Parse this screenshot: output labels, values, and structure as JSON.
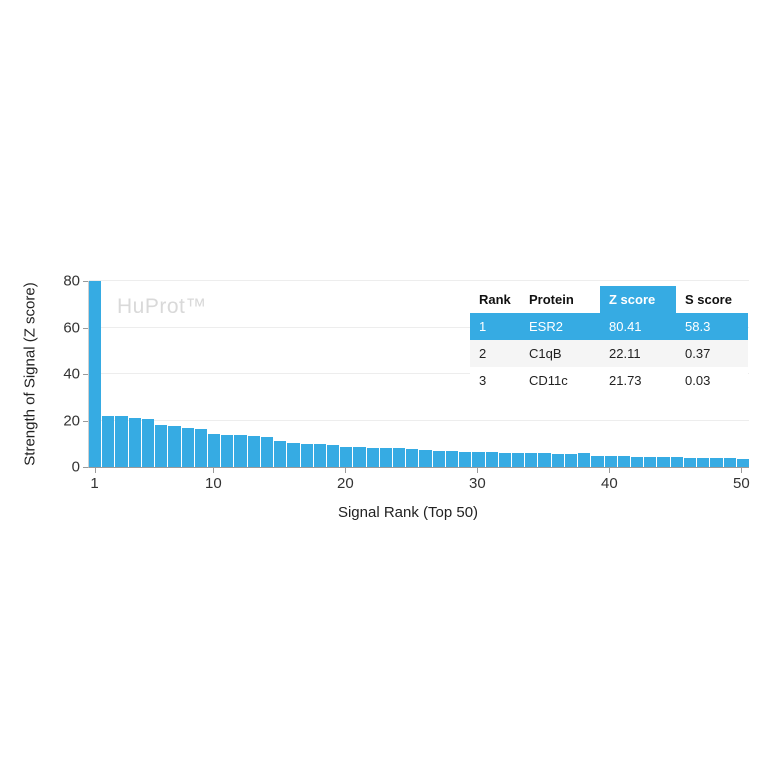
{
  "watermark": "HuProt™",
  "chart_data": {
    "type": "bar",
    "title": "",
    "xlabel": "Signal Rank (Top 50)",
    "ylabel": "Strength of Signal (Z score)",
    "ylim": [
      0,
      80
    ],
    "yticks": [
      0,
      20,
      40,
      60,
      80
    ],
    "xticks": [
      1,
      10,
      20,
      30,
      40,
      50
    ],
    "grid": "horizontal",
    "legend": "none",
    "bar_color": "#36ABE3",
    "x": [
      1,
      2,
      3,
      4,
      5,
      6,
      7,
      8,
      9,
      10,
      11,
      12,
      13,
      14,
      15,
      16,
      17,
      18,
      19,
      20,
      21,
      22,
      23,
      24,
      25,
      26,
      27,
      28,
      29,
      30,
      31,
      32,
      33,
      34,
      35,
      36,
      37,
      38,
      39,
      40,
      41,
      42,
      43,
      44,
      45,
      46,
      47,
      48,
      49,
      50
    ],
    "values": [
      80.41,
      22.11,
      21.73,
      21.2,
      20.6,
      18.1,
      17.6,
      16.7,
      16.2,
      14.2,
      13.8,
      13.6,
      13.3,
      13.1,
      11.2,
      10.3,
      9.9,
      9.7,
      9.4,
      8.7,
      8.5,
      8.3,
      8.1,
      8.0,
      7.8,
      7.3,
      7.0,
      6.8,
      6.5,
      6.4,
      6.3,
      6.1,
      6.0,
      6.0,
      5.9,
      5.7,
      5.6,
      5.9,
      4.8,
      4.7,
      4.6,
      4.4,
      4.3,
      4.3,
      4.2,
      4.0,
      3.9,
      3.9,
      3.8,
      3.5
    ]
  },
  "table": {
    "headers": [
      "Rank",
      "Protein",
      "Z score",
      "S score"
    ],
    "highlighted_header": "Z score",
    "highlight_color": "#36ABE3",
    "highlighted_row_index": 0,
    "rows": [
      [
        "1",
        "ESR2",
        "80.41",
        "58.3"
      ],
      [
        "2",
        "C1qB",
        "22.11",
        "0.37"
      ],
      [
        "3",
        "CD11c",
        "21.73",
        "0.03"
      ]
    ]
  }
}
